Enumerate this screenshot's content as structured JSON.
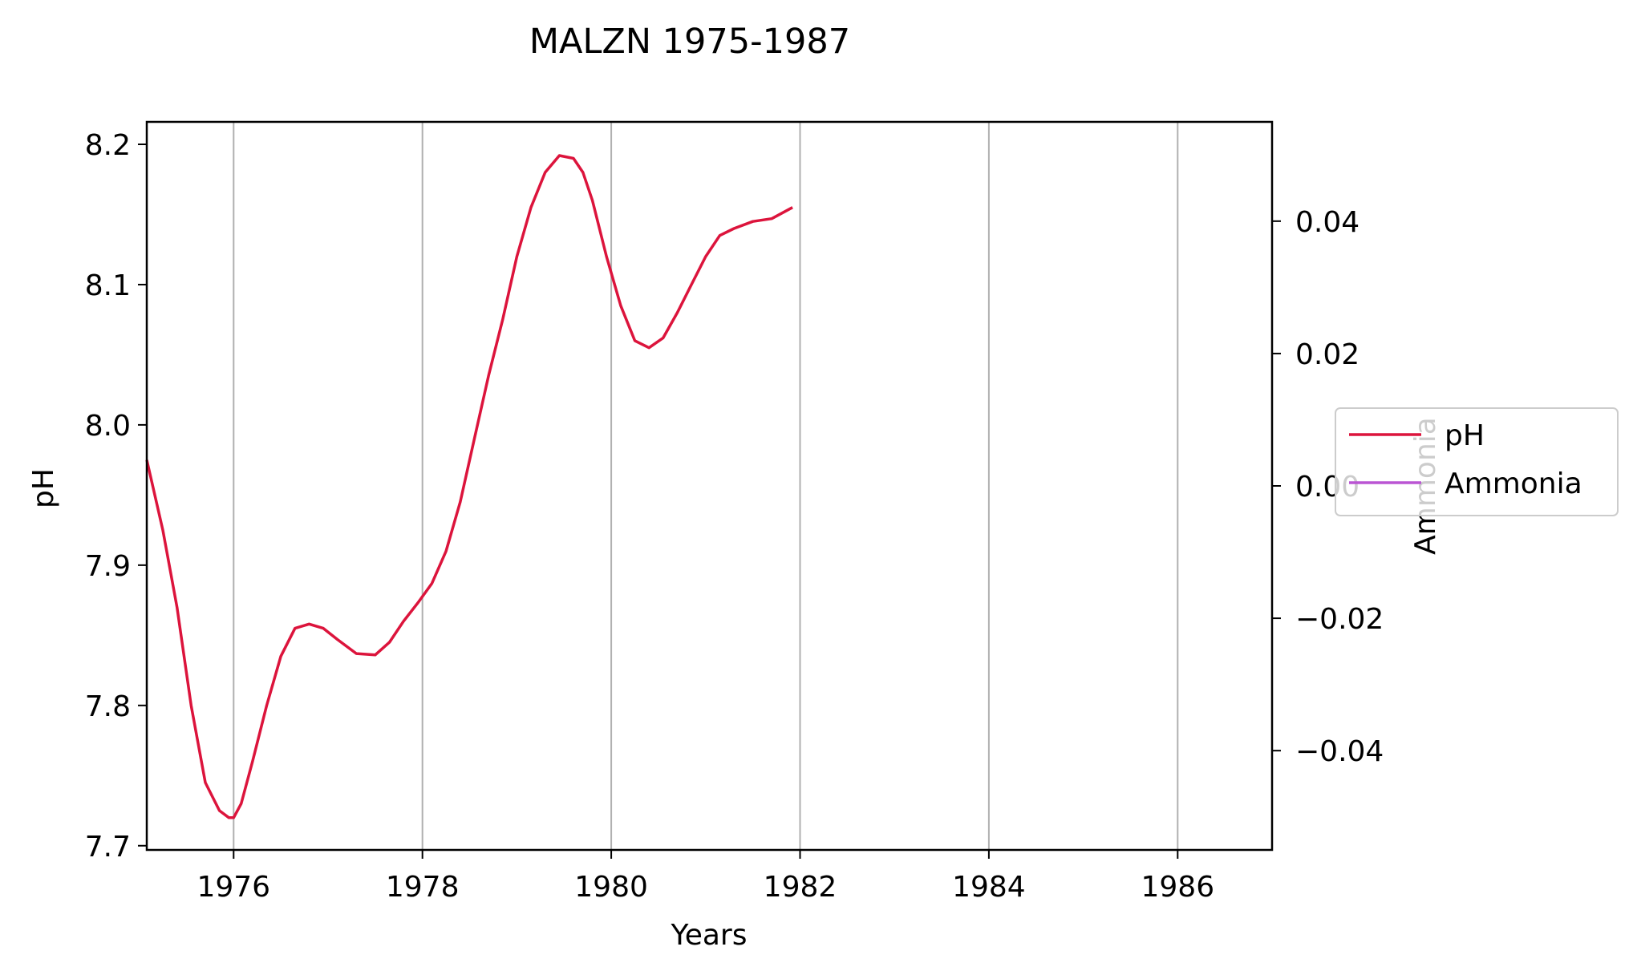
{
  "chart_data": {
    "type": "line",
    "title": "MALZN 1975-1987",
    "xlabel": "Years",
    "ylabel_left": "pH",
    "ylabel_right": "Ammonia",
    "xlim": [
      1975.08,
      1987.0
    ],
    "ylim_left": [
      7.697,
      8.216
    ],
    "ylim_right": [
      -0.055,
      0.055
    ],
    "x_ticks": [
      1976,
      1978,
      1980,
      1982,
      1984,
      1986
    ],
    "x_tick_labels": [
      "1976",
      "1978",
      "1980",
      "1982",
      "1984",
      "1986"
    ],
    "y_left_ticks": [
      7.7,
      7.8,
      7.9,
      8.0,
      8.1,
      8.2
    ],
    "y_left_tick_labels": [
      "7.7",
      "7.8",
      "7.9",
      "8.0",
      "8.1",
      "8.2"
    ],
    "y_right_ticks": [
      0.04,
      0.02,
      0.0,
      -0.02,
      -0.04
    ],
    "y_right_tick_labels": [
      "0.04",
      "0.02",
      "0.00",
      "−0.02",
      "−0.04"
    ],
    "grid": "vertical",
    "legend_position": "right",
    "series": [
      {
        "name": "pH",
        "axis": "left",
        "color": "#dc143c",
        "x": [
          1975.08,
          1975.25,
          1975.4,
          1975.55,
          1975.7,
          1975.85,
          1975.95,
          1976.0,
          1976.08,
          1976.2,
          1976.35,
          1976.5,
          1976.65,
          1976.8,
          1976.95,
          1977.1,
          1977.3,
          1977.5,
          1977.65,
          1977.8,
          1977.95,
          1978.1,
          1978.25,
          1978.4,
          1978.55,
          1978.7,
          1978.85,
          1979.0,
          1979.15,
          1979.3,
          1979.45,
          1979.6,
          1979.7,
          1979.8,
          1979.95,
          1980.1,
          1980.25,
          1980.4,
          1980.55,
          1980.7,
          1980.85,
          1981.0,
          1981.15,
          1981.3,
          1981.5,
          1981.7,
          1981.92
        ],
        "values": [
          7.975,
          7.925,
          7.87,
          7.8,
          7.745,
          7.725,
          7.72,
          7.72,
          7.73,
          7.76,
          7.8,
          7.835,
          7.855,
          7.858,
          7.855,
          7.847,
          7.837,
          7.836,
          7.845,
          7.86,
          7.873,
          7.887,
          7.91,
          7.945,
          7.99,
          8.035,
          8.075,
          8.12,
          8.155,
          8.18,
          8.192,
          8.19,
          8.18,
          8.16,
          8.12,
          8.085,
          8.06,
          8.055,
          8.062,
          8.08,
          8.1,
          8.12,
          8.135,
          8.14,
          8.145,
          8.147,
          8.155
        ]
      },
      {
        "name": "Ammonia",
        "axis": "right",
        "color": "#ba55d3",
        "x": [],
        "values": []
      }
    ]
  }
}
